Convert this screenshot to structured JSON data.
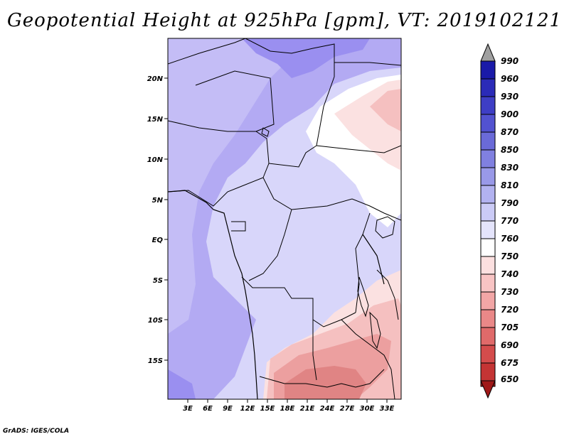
{
  "title": "Geopotential Height at 925hPa [gpm], VT: 2019102121",
  "credit": "GrADS: IGES/COLA",
  "map": {
    "lat_labels": [
      "20N",
      "15N",
      "10N",
      "5N",
      "EQ",
      "5S",
      "10S",
      "15S"
    ],
    "lon_labels": [
      "3E",
      "6E",
      "9E",
      "12E",
      "15E",
      "18E",
      "21E",
      "24E",
      "27E",
      "30E",
      "33E"
    ],
    "field_colors": {
      "deep_purple": "#9a8ff0",
      "purple": "#b3aaf3",
      "lavender": "#c4bdf6",
      "pale_lavender": "#d8d6fa",
      "white": "#ffffff",
      "pale_pink": "#fbe1e1",
      "pink": "#f5c0c0",
      "salmon": "#ec9f9f",
      "red": "#e08484"
    }
  },
  "colorbar": {
    "levels": [
      "990",
      "960",
      "930",
      "900",
      "870",
      "850",
      "830",
      "810",
      "790",
      "770",
      "760",
      "750",
      "740",
      "730",
      "720",
      "705",
      "690",
      "675",
      "650"
    ],
    "colors": [
      "#1a1aa8",
      "#2b2bb8",
      "#3e3ec5",
      "#5252d0",
      "#6a6ad8",
      "#8080e0",
      "#9999e8",
      "#b2b2f0",
      "#cbcbf6",
      "#e4e4fb",
      "#ffffff",
      "#fce0e0",
      "#f8c4c4",
      "#f2a6a6",
      "#ea8888",
      "#e06a6a",
      "#d44c4c",
      "#c43434",
      "#b01e1e"
    ],
    "top_arrow_color": "#a0a0a0",
    "bottom_arrow_color": "#a01818"
  }
}
